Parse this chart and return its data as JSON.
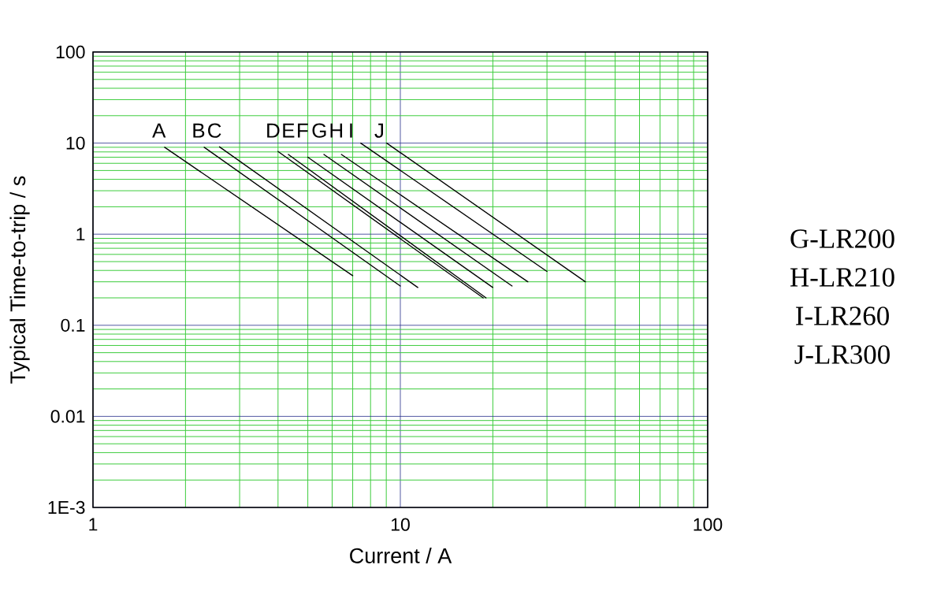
{
  "chart_data": {
    "type": "line",
    "xlabel": "Current / A",
    "ylabel": "Typical Time-to-trip / s",
    "log": "xy",
    "xlim": [
      1,
      100
    ],
    "ylim": [
      0.001,
      100
    ],
    "xticks": [
      1,
      {
        "value": 2,
        "label": null
      },
      {
        "value": 3,
        "label": null
      },
      {
        "value": 4,
        "label": null
      },
      {
        "value": 5,
        "label": null
      },
      {
        "value": 6,
        "label": null
      },
      {
        "value": 7,
        "label": null
      },
      {
        "value": 8,
        "label": null
      },
      {
        "value": 9,
        "label": null
      },
      10,
      {
        "value": 20,
        "label": null
      },
      {
        "value": 30,
        "label": null
      },
      {
        "value": 40,
        "label": null
      },
      {
        "value": 50,
        "label": null
      },
      {
        "value": 60,
        "label": null
      },
      {
        "value": 70,
        "label": null
      },
      {
        "value": 80,
        "label": null
      },
      {
        "value": 90,
        "label": null
      },
      100
    ],
    "yticks": [
      {
        "value": 0.001,
        "label": "1E-3"
      },
      {
        "value": 0.002,
        "label": null
      },
      {
        "value": 0.003,
        "label": null
      },
      {
        "value": 0.004,
        "label": null
      },
      {
        "value": 0.005,
        "label": null
      },
      {
        "value": 0.006,
        "label": null
      },
      {
        "value": 0.007,
        "label": null
      },
      {
        "value": 0.008,
        "label": null
      },
      {
        "value": 0.009,
        "label": null
      },
      0.01,
      {
        "value": 0.02,
        "label": null
      },
      {
        "value": 0.03,
        "label": null
      },
      {
        "value": 0.04,
        "label": null
      },
      {
        "value": 0.05,
        "label": null
      },
      {
        "value": 0.06,
        "label": null
      },
      {
        "value": 0.07,
        "label": null
      },
      {
        "value": 0.08,
        "label": null
      },
      {
        "value": 0.09,
        "label": null
      },
      0.1,
      {
        "value": 0.2,
        "label": null
      },
      {
        "value": 0.3,
        "label": null
      },
      {
        "value": 0.4,
        "label": null
      },
      {
        "value": 0.5,
        "label": null
      },
      {
        "value": 0.6,
        "label": null
      },
      {
        "value": 0.7,
        "label": null
      },
      {
        "value": 0.8,
        "label": null
      },
      {
        "value": 0.9,
        "label": null
      },
      1,
      {
        "value": 2,
        "label": null
      },
      {
        "value": 3,
        "label": null
      },
      {
        "value": 4,
        "label": null
      },
      {
        "value": 5,
        "label": null
      },
      {
        "value": 6,
        "label": null
      },
      {
        "value": 7,
        "label": null
      },
      {
        "value": 8,
        "label": null
      },
      {
        "value": 9,
        "label": null
      },
      10,
      {
        "value": 20,
        "label": null
      },
      {
        "value": 30,
        "label": null
      },
      {
        "value": 40,
        "label": null
      },
      {
        "value": 50,
        "label": null
      },
      {
        "value": 60,
        "label": null
      },
      {
        "value": 70,
        "label": null
      },
      {
        "value": 80,
        "label": null
      },
      {
        "value": 90,
        "label": null
      },
      100
    ],
    "grid": true,
    "annotations": [
      "G-LR200",
      "H-LR210",
      "I-LR260",
      "J-LR300"
    ],
    "series": [
      {
        "name": "A",
        "color": "#000000",
        "x": [
          1.71,
          7.0
        ],
        "values": [
          9.0,
          0.35
        ]
      },
      {
        "name": "B",
        "color": "#000000",
        "x": [
          2.3,
          10.0
        ],
        "values": [
          9.0,
          0.27
        ]
      },
      {
        "name": "C",
        "color": "#000000",
        "x": [
          2.58,
          11.4
        ],
        "values": [
          9.1,
          0.26
        ]
      },
      {
        "name": "D",
        "color": "#000000",
        "x": [
          4.0,
          18.6
        ],
        "values": [
          8.1,
          0.2
        ]
      },
      {
        "name": "E",
        "color": "#000000",
        "x": [
          4.32,
          19.0
        ],
        "values": [
          7.5,
          0.2
        ]
      },
      {
        "name": "F",
        "color": "#000000",
        "x": [
          5.0,
          20.0
        ],
        "values": [
          7.0,
          0.26
        ]
      },
      {
        "name": "G",
        "color": "#000000",
        "x": [
          5.64,
          23.1
        ],
        "values": [
          7.5,
          0.27
        ]
      },
      {
        "name": "H",
        "color": "#000000",
        "x": [
          6.43,
          26.0
        ],
        "values": [
          7.5,
          0.3
        ]
      },
      {
        "name": "I",
        "color": "#000000",
        "x": [
          7.43,
          30.0
        ],
        "values": [
          10.0,
          0.39
        ]
      },
      {
        "name": "J",
        "color": "#000000",
        "x": [
          9.03,
          40.0
        ],
        "values": [
          10.0,
          0.3
        ]
      }
    ]
  }
}
